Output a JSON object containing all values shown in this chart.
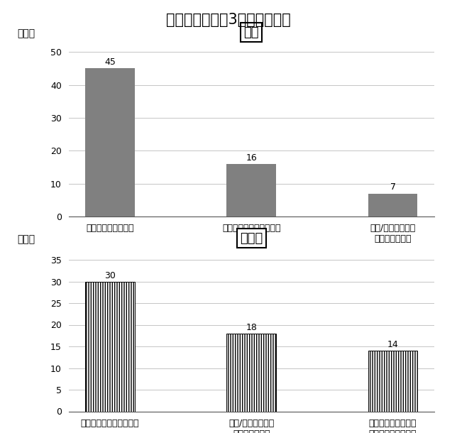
{
  "title": "参加企業の上位3位の産業分野",
  "japan_label": "日本",
  "germany_label": "ドイツ",
  "ylabel": "企業数",
  "japan_categories": [
    "その他の製品の製造",
    "機械およびプラント建設",
    "電気/電子の機器の\n組み立て・製造"
  ],
  "japan_values": [
    45,
    16,
    7
  ],
  "japan_ylim": [
    0,
    50
  ],
  "japan_yticks": [
    0,
    10,
    20,
    30,
    40,
    50
  ],
  "japan_bar_color": "#808080",
  "germany_categories": [
    "機械およびプラント建設",
    "電気/電子の機器の\n組み立て・製造",
    "銅・鉄・鉛・亜鉛・\nスズなど工業原料の\n金属加工"
  ],
  "germany_values": [
    30,
    18,
    14
  ],
  "germany_ylim": [
    0,
    35
  ],
  "germany_yticks": [
    0,
    5,
    10,
    15,
    20,
    25,
    30,
    35
  ],
  "germany_bar_color": "#808080",
  "background_color": "#ffffff",
  "title_fontsize": 15,
  "label_fontsize": 9,
  "tick_fontsize": 9,
  "value_fontsize": 9,
  "ylabel_fontsize": 10,
  "legend_fontsize": 13
}
